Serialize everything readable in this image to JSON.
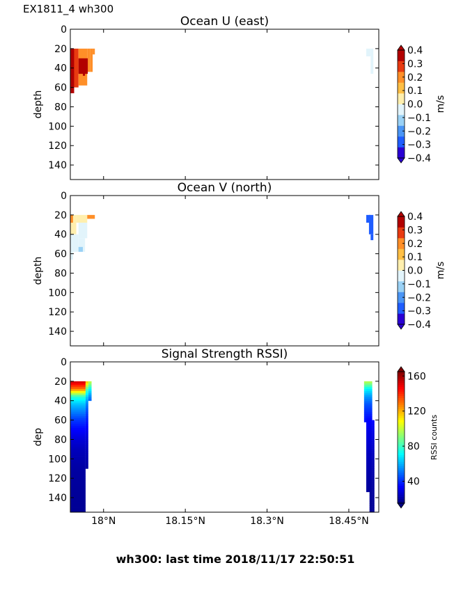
{
  "header": {
    "instrument_label": "EX1811_4 wh300"
  },
  "footer": {
    "last_time_label": "wh300: last time 2018/11/17 22:50:51"
  },
  "chart_data": [
    {
      "type": "heatmap",
      "title": "Ocean U (east)",
      "ylabel": "depth",
      "ylim": [
        155,
        0
      ],
      "yticks": [
        "0",
        "20",
        "40",
        "60",
        "80",
        "100",
        "120",
        "140"
      ],
      "xlim": [
        17.939,
        18.505
      ],
      "x_tick_positions": [
        18.0,
        18.15,
        18.3,
        18.45
      ],
      "x_tick_labels_visible": false,
      "colorbar": {
        "label": "m/s",
        "ticks": [
          "0.4",
          "0.3",
          "0.2",
          "0.1",
          "0.0",
          "−0.1",
          "−0.2",
          "−0.3",
          "−0.4"
        ],
        "range": [
          -0.4,
          0.4
        ],
        "colors": [
          "#2a00d4",
          "#1f5dff",
          "#4a95f5",
          "#9ad1f5",
          "#e2f4fb",
          "#ffefae",
          "#ffbf45",
          "#ff8f28",
          "#e83a10",
          "#b20000"
        ]
      },
      "cells": [
        {
          "x": [
            17.939,
            17.946
          ],
          "depth": [
            20,
            66
          ],
          "value": 0.32
        },
        {
          "x": [
            17.946,
            17.954
          ],
          "depth": [
            20,
            60
          ],
          "value": 0.28
        },
        {
          "x": [
            17.954,
            17.97
          ],
          "depth": [
            20,
            58
          ],
          "value": 0.24
        },
        {
          "x": [
            17.97,
            17.975
          ],
          "depth": [
            20,
            44
          ],
          "value": 0.22
        },
        {
          "x": [
            17.975,
            17.98
          ],
          "depth": [
            20,
            44
          ],
          "value": 0.2
        },
        {
          "x": [
            17.98,
            17.984
          ],
          "depth": [
            20,
            26
          ],
          "value": 0.22
        },
        {
          "x": [
            17.954,
            17.971
          ],
          "depth": [
            30,
            46
          ],
          "value": 0.33
        },
        {
          "x": [
            17.962,
            17.966
          ],
          "depth": [
            44,
            48
          ],
          "value": 0.33
        },
        {
          "x": [
            17.939,
            17.944
          ],
          "depth": [
            20,
            30
          ],
          "value": 0.35
        },
        {
          "x": [
            18.482,
            18.49
          ],
          "depth": [
            20,
            28
          ],
          "value": -0.05
        },
        {
          "x": [
            18.49,
            18.495
          ],
          "depth": [
            20,
            46
          ],
          "value": -0.05
        }
      ]
    },
    {
      "type": "heatmap",
      "title": "Ocean V (north)",
      "ylabel": "depth",
      "ylim": [
        155,
        0
      ],
      "yticks": [
        "0",
        "20",
        "40",
        "60",
        "80",
        "100",
        "120",
        "140"
      ],
      "xlim": [
        17.939,
        18.505
      ],
      "x_tick_positions": [
        18.0,
        18.15,
        18.3,
        18.45
      ],
      "x_tick_labels_visible": false,
      "colorbar": {
        "label": "m/s",
        "ticks": [
          "0.4",
          "0.3",
          "0.2",
          "0.1",
          "0.0",
          "−0.1",
          "−0.2",
          "−0.3",
          "−0.4"
        ],
        "range": [
          -0.4,
          0.4
        ],
        "colors": [
          "#2a00d4",
          "#1f5dff",
          "#4a95f5",
          "#9ad1f5",
          "#e2f4fb",
          "#ffefae",
          "#ffbf45",
          "#ff8f28",
          "#e83a10",
          "#b20000"
        ]
      },
      "cells": [
        {
          "x": [
            17.939,
            17.95
          ],
          "depth": [
            20,
            40
          ],
          "value": 0.05
        },
        {
          "x": [
            17.95,
            17.97
          ],
          "depth": [
            20,
            28
          ],
          "value": 0.05
        },
        {
          "x": [
            17.97,
            17.984
          ],
          "depth": [
            20,
            24
          ],
          "value": 0.2
        },
        {
          "x": [
            17.939,
            17.944
          ],
          "depth": [
            20,
            28
          ],
          "value": 0.2
        },
        {
          "x": [
            17.954,
            17.97
          ],
          "depth": [
            28,
            44
          ],
          "value": -0.05
        },
        {
          "x": [
            17.944,
            17.954
          ],
          "depth": [
            40,
            58
          ],
          "value": -0.05
        },
        {
          "x": [
            17.939,
            17.944
          ],
          "depth": [
            40,
            66
          ],
          "value": -0.05
        },
        {
          "x": [
            17.954,
            17.966
          ],
          "depth": [
            44,
            58
          ],
          "value": -0.05
        },
        {
          "x": [
            17.954,
            17.962
          ],
          "depth": [
            53,
            58
          ],
          "value": -0.12
        },
        {
          "x": [
            18.482,
            18.49
          ],
          "depth": [
            20,
            28
          ],
          "value": -0.25
        },
        {
          "x": [
            18.487,
            18.495
          ],
          "depth": [
            20,
            40
          ],
          "value": -0.25
        },
        {
          "x": [
            18.49,
            18.495
          ],
          "depth": [
            40,
            46
          ],
          "value": -0.25
        }
      ]
    },
    {
      "type": "heatmap",
      "title": "Signal Strength RSSI)",
      "ylabel": "dep",
      "ylim": [
        155,
        0
      ],
      "yticks": [
        "0",
        "20",
        "40",
        "60",
        "80",
        "100",
        "120",
        "140"
      ],
      "xlim": [
        17.939,
        18.505
      ],
      "xticks": [
        "18°N",
        "18.15°N",
        "18.3°N",
        "18.45°N"
      ],
      "x_tick_positions": [
        18.0,
        18.15,
        18.3,
        18.45
      ],
      "colorbar": {
        "label": "RSSI counts",
        "ticks": [
          "160",
          "120",
          "80",
          "40"
        ],
        "tick_values": [
          160,
          120,
          80,
          40
        ],
        "range": [
          15,
          165
        ]
      },
      "columns": [
        {
          "x": [
            17.939,
            17.967
          ],
          "profile": [
            [
              20,
              155
            ],
            [
              28,
              129
            ],
            [
              36,
              77
            ],
            [
              44,
              62
            ],
            [
              52,
              52
            ],
            [
              60,
              42
            ],
            [
              70,
              34
            ],
            [
              80,
              28
            ],
            [
              90,
              24
            ],
            [
              100,
              22
            ],
            [
              112,
              20
            ],
            [
              130,
              19
            ],
            [
              155,
              18
            ]
          ]
        },
        {
          "x": [
            17.967,
            17.972
          ],
          "profile": [
            [
              20,
              120
            ],
            [
              28,
              85
            ],
            [
              36,
              64
            ],
            [
              44,
              52
            ],
            [
              52,
              44
            ],
            [
              60,
              38
            ],
            [
              70,
              32
            ],
            [
              80,
              27
            ],
            [
              90,
              24
            ],
            [
              100,
              22
            ],
            [
              110,
              20
            ]
          ]
        },
        {
          "x": [
            17.972,
            17.978
          ],
          "profile": [
            [
              20,
              102
            ],
            [
              28,
              72
            ],
            [
              36,
              54
            ],
            [
              40,
              48
            ]
          ]
        },
        {
          "x": [
            18.478,
            18.482
          ],
          "profile": [
            [
              20,
              100
            ],
            [
              28,
              72
            ],
            [
              36,
              56
            ],
            [
              44,
              46
            ],
            [
              52,
              40
            ],
            [
              62,
              36
            ]
          ]
        },
        {
          "x": [
            18.482,
            18.493
          ],
          "profile": [
            [
              20,
              100
            ],
            [
              28,
              70
            ],
            [
              36,
              56
            ],
            [
              44,
              46
            ],
            [
              52,
              40
            ],
            [
              60,
              34
            ],
            [
              72,
              30
            ],
            [
              84,
              27
            ],
            [
              96,
              24
            ],
            [
              110,
              22
            ],
            [
              124,
              20
            ],
            [
              134,
              19
            ]
          ]
        },
        {
          "x": [
            18.488,
            18.493
          ],
          "profile": [
            [
              134,
              19
            ],
            [
              145,
              18
            ],
            [
              155,
              18
            ]
          ]
        },
        {
          "x": [
            18.493,
            18.497
          ],
          "profile": [
            [
              60,
              34
            ],
            [
              72,
              30
            ],
            [
              84,
              27
            ],
            [
              96,
              24
            ],
            [
              110,
              22
            ],
            [
              124,
              20
            ],
            [
              140,
              19
            ],
            [
              155,
              18
            ]
          ]
        }
      ]
    }
  ]
}
